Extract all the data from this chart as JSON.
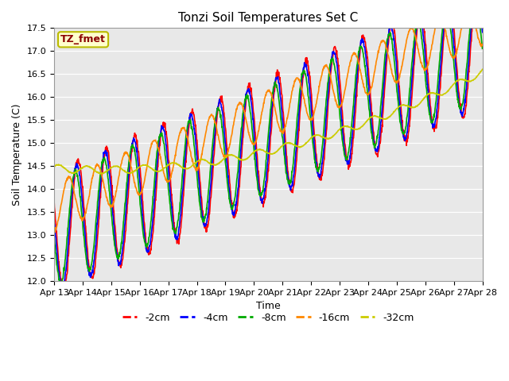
{
  "title": "Tonzi Soil Temperatures Set C",
  "xlabel": "Time",
  "ylabel": "Soil Temperature (C)",
  "ylim": [
    12.0,
    17.5
  ],
  "yticks": [
    12.0,
    12.5,
    13.0,
    13.5,
    14.0,
    14.5,
    15.0,
    15.5,
    16.0,
    16.5,
    17.0,
    17.5
  ],
  "xtick_labels": [
    "Apr 13",
    "Apr 14",
    "Apr 15",
    "Apr 16",
    "Apr 17",
    "Apr 18",
    "Apr 19",
    "Apr 20",
    "Apr 21",
    "Apr 22",
    "Apr 23",
    "Apr 24",
    "Apr 25",
    "Apr 26",
    "Apr 27",
    "Apr 28"
  ],
  "legend_label": "TZ_fmet",
  "plot_bg_color": "#e8e8e8",
  "fig_bg_color": "#ffffff",
  "series_colors": {
    "-2cm": "#ff0000",
    "-4cm": "#0000ff",
    "-8cm": "#00aa00",
    "-16cm": "#ff8800",
    "-32cm": "#cccc00"
  },
  "series_labels": [
    "-2cm",
    "-4cm",
    "-8cm",
    "-16cm",
    "-32cm"
  ],
  "line_width": 1.2,
  "title_fontsize": 11,
  "axis_fontsize": 9,
  "tick_fontsize": 8
}
